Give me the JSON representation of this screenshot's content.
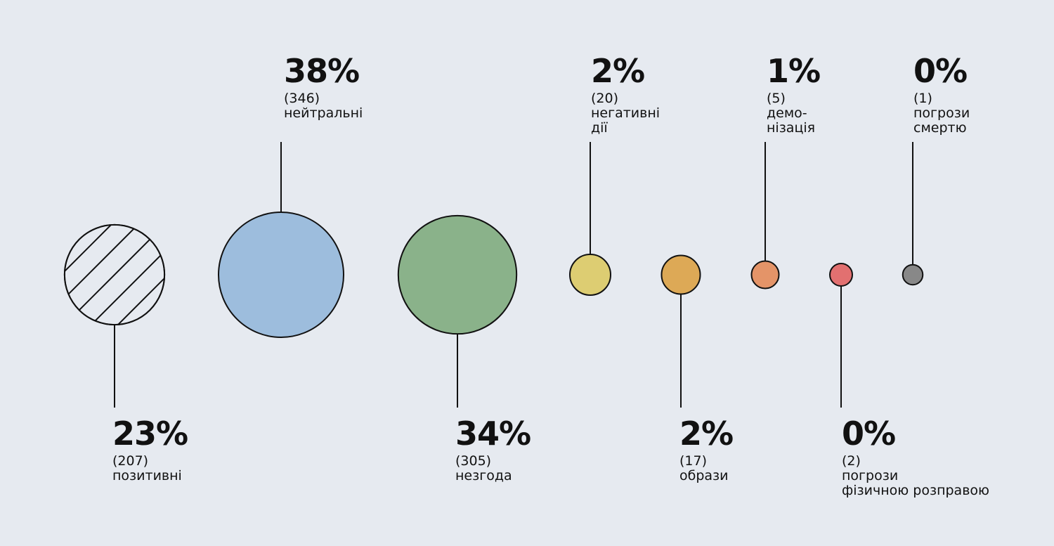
{
  "chart_data": {
    "type": "bubble",
    "title": "",
    "colors": {
      "positive": "#e6eaf0",
      "neutral": "#9dbddd",
      "disagree": "#8ab28a",
      "negative_actions": "#ddcd72",
      "insults": "#dda956",
      "demonization": "#e49468",
      "threats_physical": "#e27070",
      "threats_death": "#888888"
    },
    "items": [
      {
        "key": "positive",
        "percent_label": "23%",
        "count_label": "(207)",
        "lines": [
          "позитивні"
        ],
        "percent": 23,
        "count": 207,
        "label_side": "bottom",
        "pattern": "hatch"
      },
      {
        "key": "neutral",
        "percent_label": "38%",
        "count_label": "(346)",
        "lines": [
          "нейтральні"
        ],
        "percent": 38,
        "count": 346,
        "label_side": "top",
        "pattern": "solid"
      },
      {
        "key": "disagree",
        "percent_label": "34%",
        "count_label": "(305)",
        "lines": [
          "незгода"
        ],
        "percent": 34,
        "count": 305,
        "label_side": "bottom",
        "pattern": "solid"
      },
      {
        "key": "negative_actions",
        "percent_label": "2%",
        "count_label": "(20)",
        "lines": [
          "негативні",
          "дії"
        ],
        "percent": 2,
        "count": 20,
        "label_side": "top",
        "pattern": "solid"
      },
      {
        "key": "insults",
        "percent_label": "2%",
        "count_label": "(17)",
        "lines": [
          "образи"
        ],
        "percent": 2,
        "count": 17,
        "label_side": "bottom",
        "pattern": "solid"
      },
      {
        "key": "demonization",
        "percent_label": "1%",
        "count_label": "(5)",
        "lines": [
          "демо-",
          "нізація"
        ],
        "percent": 1,
        "count": 5,
        "label_side": "top",
        "pattern": "solid"
      },
      {
        "key": "threats_physical",
        "percent_label": "0%",
        "count_label": "(2)",
        "lines": [
          "погрози",
          "фізичною розправою"
        ],
        "percent": 0,
        "count": 2,
        "label_side": "bottom",
        "pattern": "solid"
      },
      {
        "key": "threats_death",
        "percent_label": "0%",
        "count_label": "(1)",
        "lines": [
          "погрози",
          "смертю"
        ],
        "percent": 0,
        "count": 1,
        "label_side": "top",
        "pattern": "solid"
      }
    ]
  }
}
